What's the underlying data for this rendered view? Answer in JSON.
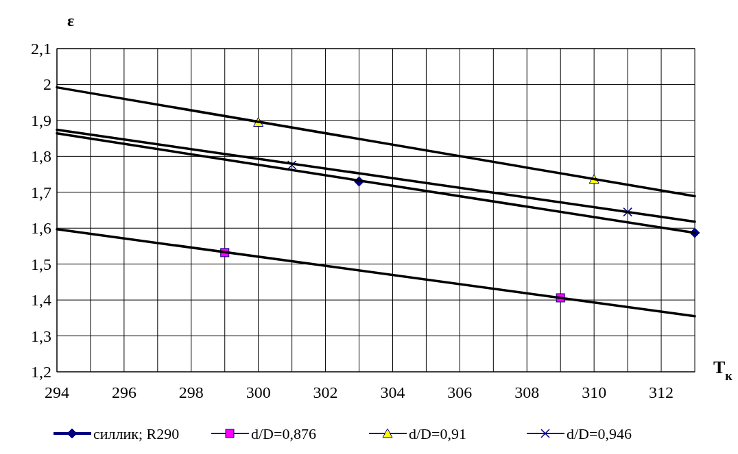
{
  "chart_data": {
    "type": "scatter",
    "xlabel": "T$_{к}$",
    "ylabel": "ε",
    "xlim": [
      294,
      313
    ],
    "ylim": [
      1.2,
      2.1
    ],
    "xticks": [
      294,
      {
        "value": 295,
        "label": null
      },
      296,
      {
        "value": 297,
        "label": null
      },
      298,
      {
        "value": 299,
        "label": null
      },
      300,
      {
        "value": 301,
        "label": null
      },
      302,
      {
        "value": 303,
        "label": null
      },
      304,
      {
        "value": 305,
        "label": null
      },
      306,
      {
        "value": 307,
        "label": null
      },
      308,
      {
        "value": 309,
        "label": null
      },
      310,
      {
        "value": 311,
        "label": null
      },
      312
    ],
    "yticks": [
      {
        "value": 1.2,
        "label": "1,2"
      },
      {
        "value": 1.3,
        "label": "1,3"
      },
      {
        "value": 1.4,
        "label": "1,4"
      },
      {
        "value": 1.5,
        "label": "1,5"
      },
      {
        "value": 1.6,
        "label": "1,6"
      },
      {
        "value": 1.7,
        "label": "1,7"
      },
      {
        "value": 1.8,
        "label": "1,8"
      },
      {
        "value": 1.9,
        "label": "1,9"
      },
      {
        "value": 2,
        "label": "2"
      },
      {
        "value": 2.1,
        "label": "2,1"
      }
    ],
    "grid": true,
    "legend": "bottom",
    "series": [
      {
        "name": "силлик; R290",
        "color": "#000080",
        "marker": "diamond",
        "x": [
          303,
          313
        ],
        "values": [
          1.73,
          1.587
        ]
      },
      {
        "name": "d/D=0,876",
        "color": "#ff00ff",
        "marker": "square",
        "x": [
          299,
          309
        ],
        "values": [
          1.532,
          1.406
        ]
      },
      {
        "name": "d/D=0,91",
        "color": "#ffff00",
        "marker": "triangle",
        "x": [
          300,
          310
        ],
        "values": [
          1.895,
          1.736
        ]
      },
      {
        "name": "d/D=0,946",
        "color": "#000080",
        "marker": "cross",
        "x": [
          301,
          311
        ],
        "values": [
          1.776,
          1.645
        ]
      },
      {
        "type": "line",
        "color": "#000000",
        "marker": "none",
        "x": [
          294,
          313
        ],
        "values": [
          1.992,
          1.689
        ]
      },
      {
        "type": "line",
        "color": "#000000",
        "marker": "none",
        "x": [
          294,
          313
        ],
        "values": [
          1.874,
          1.618
        ]
      },
      {
        "type": "line",
        "color": "#000000",
        "marker": "none",
        "x": [
          294,
          313
        ],
        "values": [
          1.864,
          1.587
        ]
      },
      {
        "type": "line",
        "color": "#000000",
        "marker": "none",
        "x": [
          294,
          313
        ],
        "values": [
          1.597,
          1.355
        ]
      }
    ]
  }
}
